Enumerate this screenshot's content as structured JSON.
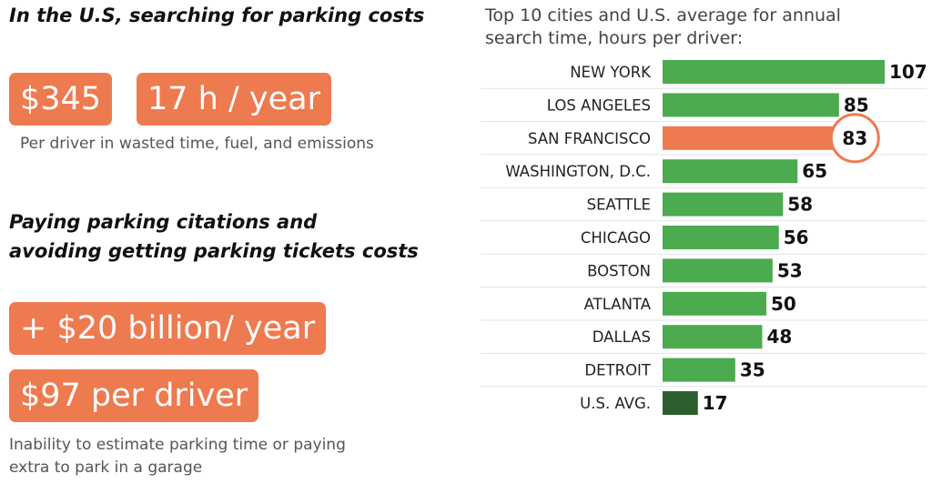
{
  "left": {
    "heading1": "In the U.S, searching for parking costs",
    "badge_cost": "$345",
    "badge_time": "17 h / year",
    "note1": "Per driver in wasted time, fuel, and emissions",
    "heading2_line1": "Paying parking citations and",
    "heading2_line2": "avoiding getting parking tickets costs",
    "badge_billion": "+ $20 billion/ year",
    "badge_driver": "$97 per driver",
    "note2_line1": "Inability to estimate parking time or paying",
    "note2_line2": "extra to park in a garage"
  },
  "chart_data": {
    "type": "bar",
    "orientation": "horizontal",
    "title_line1": "Top 10 cities and U.S. average for annual",
    "title_line2": "search time, hours per driver:",
    "categories": [
      "NEW YORK",
      "LOS ANGELES",
      "SAN FRANCISCO",
      "WASHINGTON, D.C.",
      "SEATTLE",
      "CHICAGO",
      "BOSTON",
      "ATLANTA",
      "DALLAS",
      "DETROIT",
      "U.S. AVG."
    ],
    "values": [
      107,
      85,
      83,
      65,
      58,
      56,
      53,
      50,
      48,
      35,
      17
    ],
    "colors": [
      "#4caa4f",
      "#4caa4f",
      "#ee7a4f",
      "#4caa4f",
      "#4caa4f",
      "#4caa4f",
      "#4caa4f",
      "#4caa4f",
      "#4caa4f",
      "#4caa4f",
      "#2d5f2e"
    ],
    "highlight": "SAN FRANCISCO",
    "highlight_color": "#ee7a4f",
    "xlim": [
      0,
      107
    ],
    "grid": false
  }
}
